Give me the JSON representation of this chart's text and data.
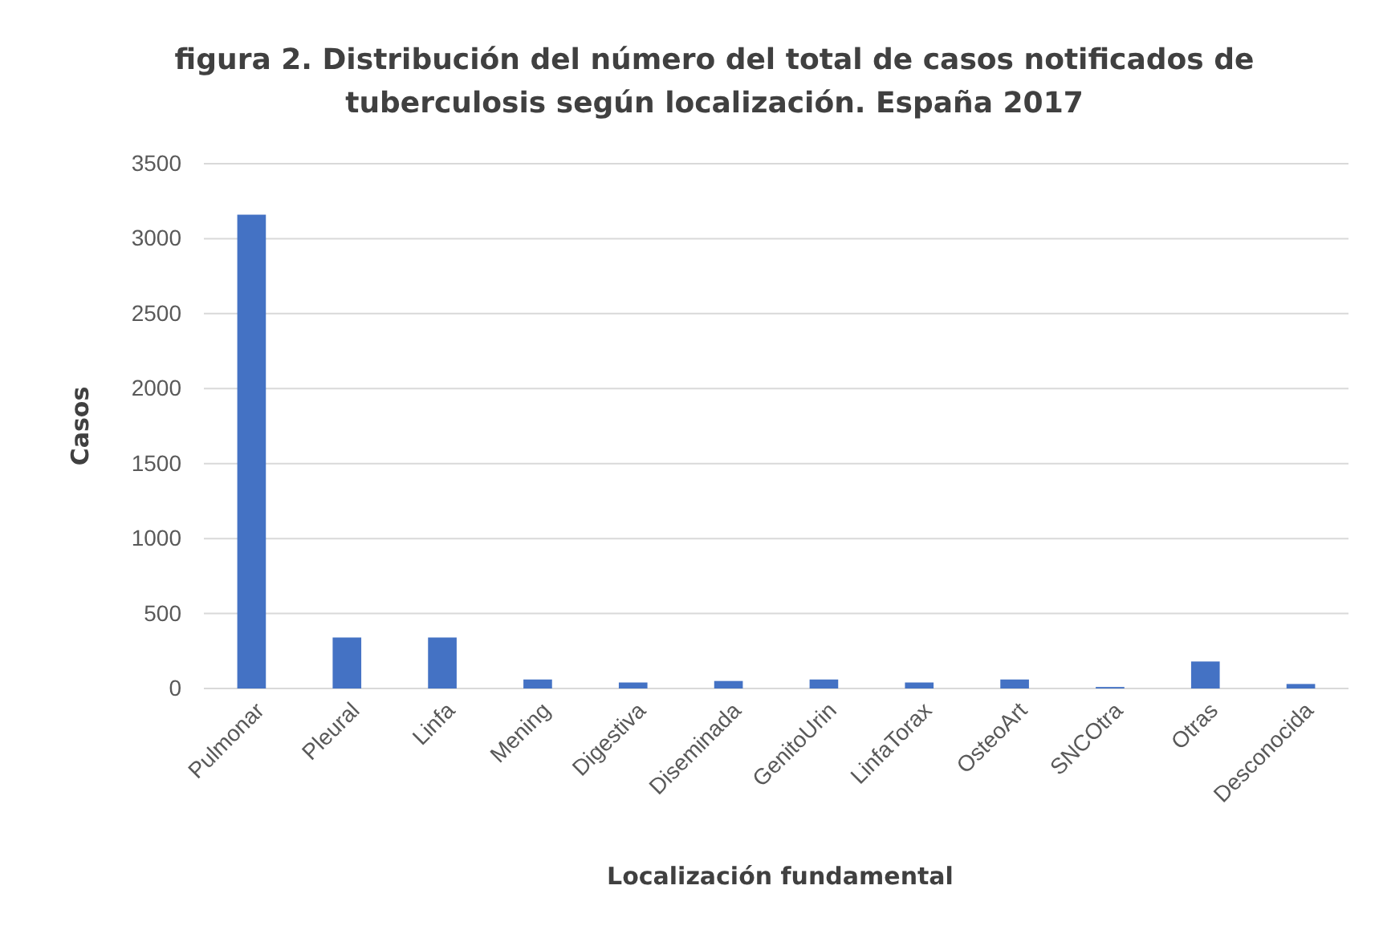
{
  "chart_data": {
    "type": "bar",
    "title": "figura 2. Distribución del número del total de casos notificados de tuberculosis según localización. España 2017",
    "xlabel": "Localización fundamental",
    "ylabel": "Casos",
    "categories": [
      "Pulmonar",
      "Pleural",
      "Linfa",
      "Mening",
      "Digestiva",
      "Diseminada",
      "GenitoUrin",
      "LinfaTorax",
      "OsteoArt",
      "SNCOtra",
      "Otras",
      "Desconocida"
    ],
    "values": [
      3160,
      340,
      340,
      60,
      40,
      50,
      60,
      40,
      60,
      10,
      180,
      30
    ],
    "color": "#4472c4",
    "ylim": [
      0,
      3500
    ],
    "yticks": [
      0,
      500,
      1000,
      1500,
      2000,
      2500,
      3000,
      3500
    ],
    "grid": "y"
  }
}
